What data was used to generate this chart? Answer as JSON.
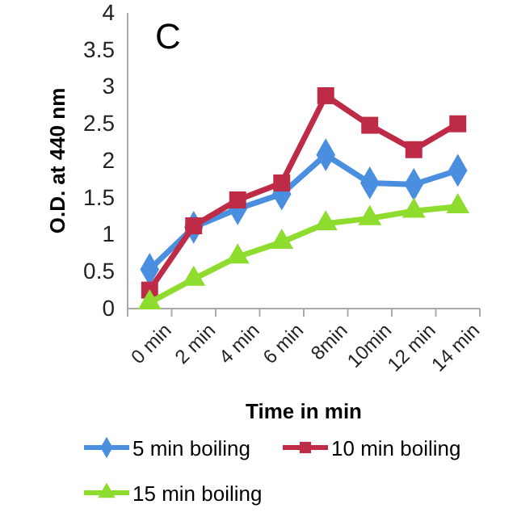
{
  "chart_data": {
    "type": "line",
    "xlabel": "Time in min",
    "ylabel": "O.D. at 440 nm",
    "annotations": [
      "C"
    ],
    "categories": [
      "0 min",
      "2 min",
      "4 min",
      "6 min",
      "8min",
      "10min",
      "12 min",
      "14 min"
    ],
    "ylim": [
      0,
      4
    ],
    "yticks": [
      0,
      0.5,
      1,
      1.5,
      2,
      2.5,
      3,
      3.5,
      4
    ],
    "grid": false,
    "legend": "bottom",
    "line_style": "solid",
    "series": [
      {
        "name": "5 min boiling",
        "color": "#4a8ee0",
        "marker": "diamond",
        "values": [
          0.53,
          1.1,
          1.35,
          1.55,
          2.08,
          1.7,
          1.68,
          1.87
        ]
      },
      {
        "name": "10 min boiling",
        "color": "#be2b46",
        "marker": "square",
        "values": [
          0.25,
          1.12,
          1.47,
          1.7,
          2.88,
          2.48,
          2.15,
          2.5
        ]
      },
      {
        "name": "15 min boiling",
        "color": "#8edc2e",
        "marker": "triangle",
        "values": [
          0.08,
          0.4,
          0.7,
          0.9,
          1.15,
          1.22,
          1.32,
          1.38
        ]
      }
    ]
  }
}
